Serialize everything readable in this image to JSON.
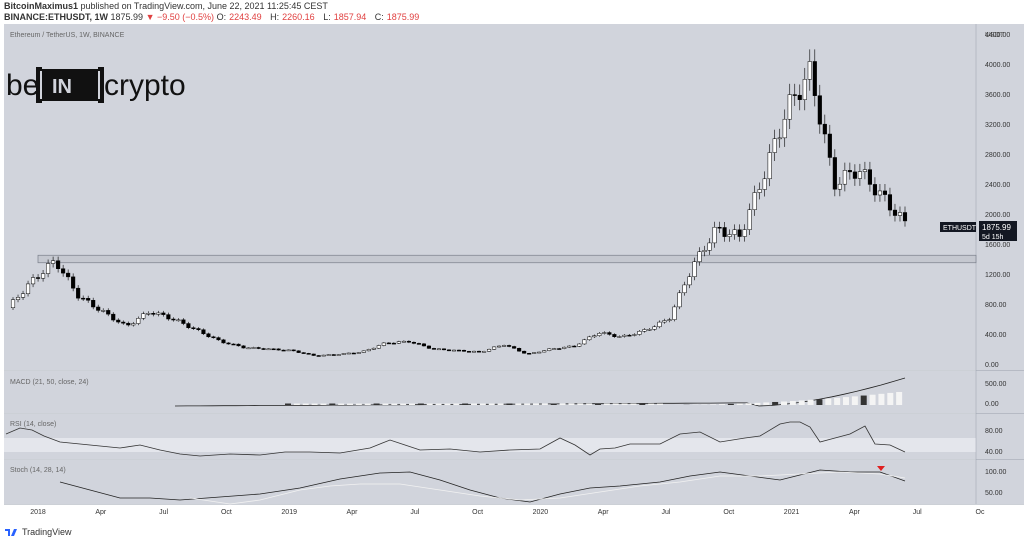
{
  "header": {
    "author": "BitcoinMaximus1",
    "published_text": "published on TradingView.com, June 22, 2021 11:25:45 CEST",
    "symbol": "BINANCE:ETHUSDT, 1W",
    "last_price": "1875.99",
    "change": "▼ −9.50 (−0.5%)",
    "ohlc": [
      {
        "label": "O:",
        "value": "2243.49"
      },
      {
        "label": "H:",
        "value": "2260.16"
      },
      {
        "label": "L:",
        "value": "1857.94"
      },
      {
        "label": "C:",
        "value": "1875.99"
      }
    ]
  },
  "chart_data": {
    "type": "candlestick",
    "title": "Ethereum / TetherUS, 1W, BINANCE",
    "watermark": "be[IN]crypto",
    "currency": "USDT",
    "price_axis": {
      "ticks": [
        "4400.00",
        "4000.00",
        "3600.00",
        "3200.00",
        "2800.00",
        "2400.00",
        "2000.00",
        "1600.00",
        "1200.00",
        "800.00",
        "400.00",
        "0.00"
      ],
      "values": [
        4400,
        4000,
        3600,
        3200,
        2800,
        2400,
        2000,
        1600,
        1200,
        800,
        400,
        0
      ]
    },
    "x_axis": {
      "labels": [
        "2018",
        "Apr",
        "Jul",
        "Oct",
        "2019",
        "Apr",
        "Jul",
        "Oct",
        "2020",
        "Apr",
        "Jul",
        "Oct",
        "2021",
        "Apr",
        "Jul",
        "Oc"
      ]
    },
    "current_price_label": {
      "symbol": "ETHUSDT",
      "price": "1875.99",
      "countdown": "5d 15h"
    },
    "resistance_zone": {
      "low": 1350,
      "high": 1450
    },
    "price_series": [
      {
        "date": "2017-12",
        "close": 750
      },
      {
        "date": "2018-01",
        "close": 1100
      },
      {
        "date": "2018-01b",
        "close": 1380
      },
      {
        "date": "2018-02",
        "close": 900
      },
      {
        "date": "2018-03",
        "close": 700
      },
      {
        "date": "2018-04",
        "close": 500
      },
      {
        "date": "2018-05",
        "close": 700
      },
      {
        "date": "2018-06",
        "close": 600
      },
      {
        "date": "2018-07",
        "close": 450
      },
      {
        "date": "2018-08",
        "close": 300
      },
      {
        "date": "2018-09",
        "close": 220
      },
      {
        "date": "2018-10",
        "close": 200
      },
      {
        "date": "2018-11",
        "close": 180
      },
      {
        "date": "2018-12",
        "close": 110
      },
      {
        "date": "2019-02",
        "close": 130
      },
      {
        "date": "2019-04",
        "close": 160
      },
      {
        "date": "2019-06",
        "close": 280
      },
      {
        "date": "2019-07",
        "close": 300
      },
      {
        "date": "2019-09",
        "close": 200
      },
      {
        "date": "2019-11",
        "close": 180
      },
      {
        "date": "2020-01",
        "close": 160
      },
      {
        "date": "2020-02",
        "close": 260
      },
      {
        "date": "2020-03",
        "close": 130
      },
      {
        "date": "2020-05",
        "close": 200
      },
      {
        "date": "2020-07",
        "close": 240
      },
      {
        "date": "2020-08",
        "close": 420
      },
      {
        "date": "2020-09",
        "close": 360
      },
      {
        "date": "2020-11",
        "close": 450
      },
      {
        "date": "2020-12",
        "close": 600
      },
      {
        "date": "2021-01",
        "close": 1300
      },
      {
        "date": "2021-02",
        "close": 1800
      },
      {
        "date": "2021-03",
        "close": 1700
      },
      {
        "date": "2021-04",
        "close": 2500
      },
      {
        "date": "2021-05a",
        "close": 3400
      },
      {
        "date": "2021-05b",
        "close": 3900
      },
      {
        "date": "2021-05c",
        "close": 2400
      },
      {
        "date": "2021-06a",
        "close": 2600
      },
      {
        "date": "2021-06b",
        "close": 2243
      },
      {
        "date": "2021-06c",
        "close": 1875.99
      }
    ],
    "indicators": [
      {
        "name": "MACD (21, 50, close, 24)",
        "ticks": [
          "500.00",
          "0.00"
        ]
      },
      {
        "name": "RSI (14, close)",
        "ticks": [
          "80.00",
          "40.00"
        ]
      },
      {
        "name": "Stoch (14, 28, 14)",
        "ticks": [
          "100.00",
          "50.00"
        ]
      }
    ],
    "colors": {
      "background": "#d1d4dc",
      "bull": "#ffffff",
      "bear": "#000000",
      "marker": "#e02020"
    }
  },
  "footer": {
    "brand": "TradingView"
  }
}
